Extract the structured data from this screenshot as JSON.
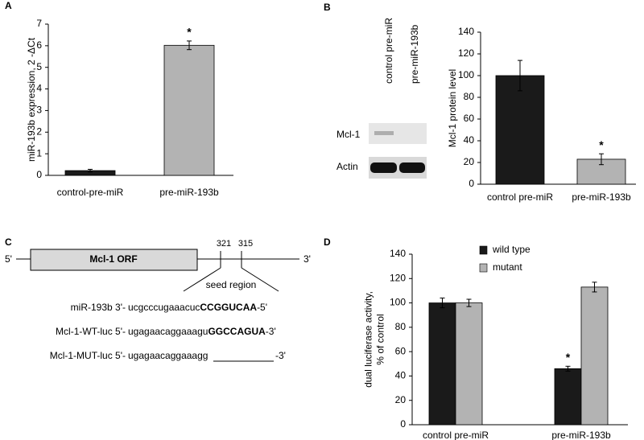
{
  "panel_labels": [
    "A",
    "B",
    "C",
    "D"
  ],
  "chart_data": [
    {
      "type": "bar",
      "ylabel": [
        "miR-193b expression, 2 -ΔCt"
      ],
      "categories": [
        "control-pre-miR",
        "pre-miR-193b"
      ],
      "values": [
        0.22,
        6.02
      ],
      "errors": [
        0.06,
        0.2
      ],
      "colors": [
        "#1a1a1a",
        "#b3b3b3"
      ],
      "annotations": [
        null,
        "*"
      ],
      "ylim": [
        0,
        7
      ],
      "yticks": [
        0,
        1,
        2,
        3,
        4,
        5,
        6,
        7
      ],
      "grid": false
    },
    {
      "type": "bar",
      "ylabel": [
        "Mcl-1 protein level"
      ],
      "categories": [
        "control pre-miR",
        "pre-miR-193b"
      ],
      "values": [
        100,
        23
      ],
      "errors": [
        14,
        5
      ],
      "colors": [
        "#1a1a1a",
        "#b3b3b3"
      ],
      "annotations": [
        null,
        "*"
      ],
      "ylim": [
        0,
        140
      ],
      "yticks": [
        0,
        20,
        40,
        60,
        80,
        100,
        120,
        140
      ],
      "grid": false
    },
    {
      "type": "grouped-bar",
      "ylabel": [
        "dual luciferase activity,",
        "% of control"
      ],
      "categories": [
        "control pre-miR",
        "pre-miR-193b"
      ],
      "series": [
        {
          "name": "wild type",
          "color": "#1a1a1a",
          "values": [
            100,
            46
          ],
          "errors": [
            4,
            2
          ],
          "annotations": [
            null,
            "*"
          ]
        },
        {
          "name": "mutant",
          "color": "#b3b3b3",
          "values": [
            100,
            113
          ],
          "errors": [
            3,
            4
          ],
          "annotations": [
            null,
            null
          ]
        }
      ],
      "ylim": [
        0,
        140
      ],
      "yticks": [
        0,
        20,
        40,
        60,
        80,
        100,
        120,
        140
      ],
      "grid": false,
      "legend": "top"
    }
  ],
  "blot": {
    "lanes": [
      "control pre-miR",
      "pre-miR-193b"
    ],
    "rows": [
      "Mcl-1",
      "Actin"
    ]
  },
  "diagram": {
    "five_prime": "5'",
    "orf": "Mcl-1 ORF",
    "three_prime": "3'",
    "positions": [
      "321",
      "315"
    ],
    "seed": "seed region",
    "sequences": [
      {
        "label": "miR-193b 3'-",
        "plain": "ucgcccugaaacuc",
        "bold": "CCGGUCAA",
        "end": "-5'"
      },
      {
        "label": "Mcl-1-WT-luc 5'-",
        "plain": "ugagaacaggaaagu",
        "bold": "GGCCAGUA",
        "end": "-3'"
      },
      {
        "label": "Mcl-1-MUT-luc 5'-",
        "plain": "ugagaacaggaaagg",
        "bold": "",
        "end": "-3'"
      }
    ]
  }
}
